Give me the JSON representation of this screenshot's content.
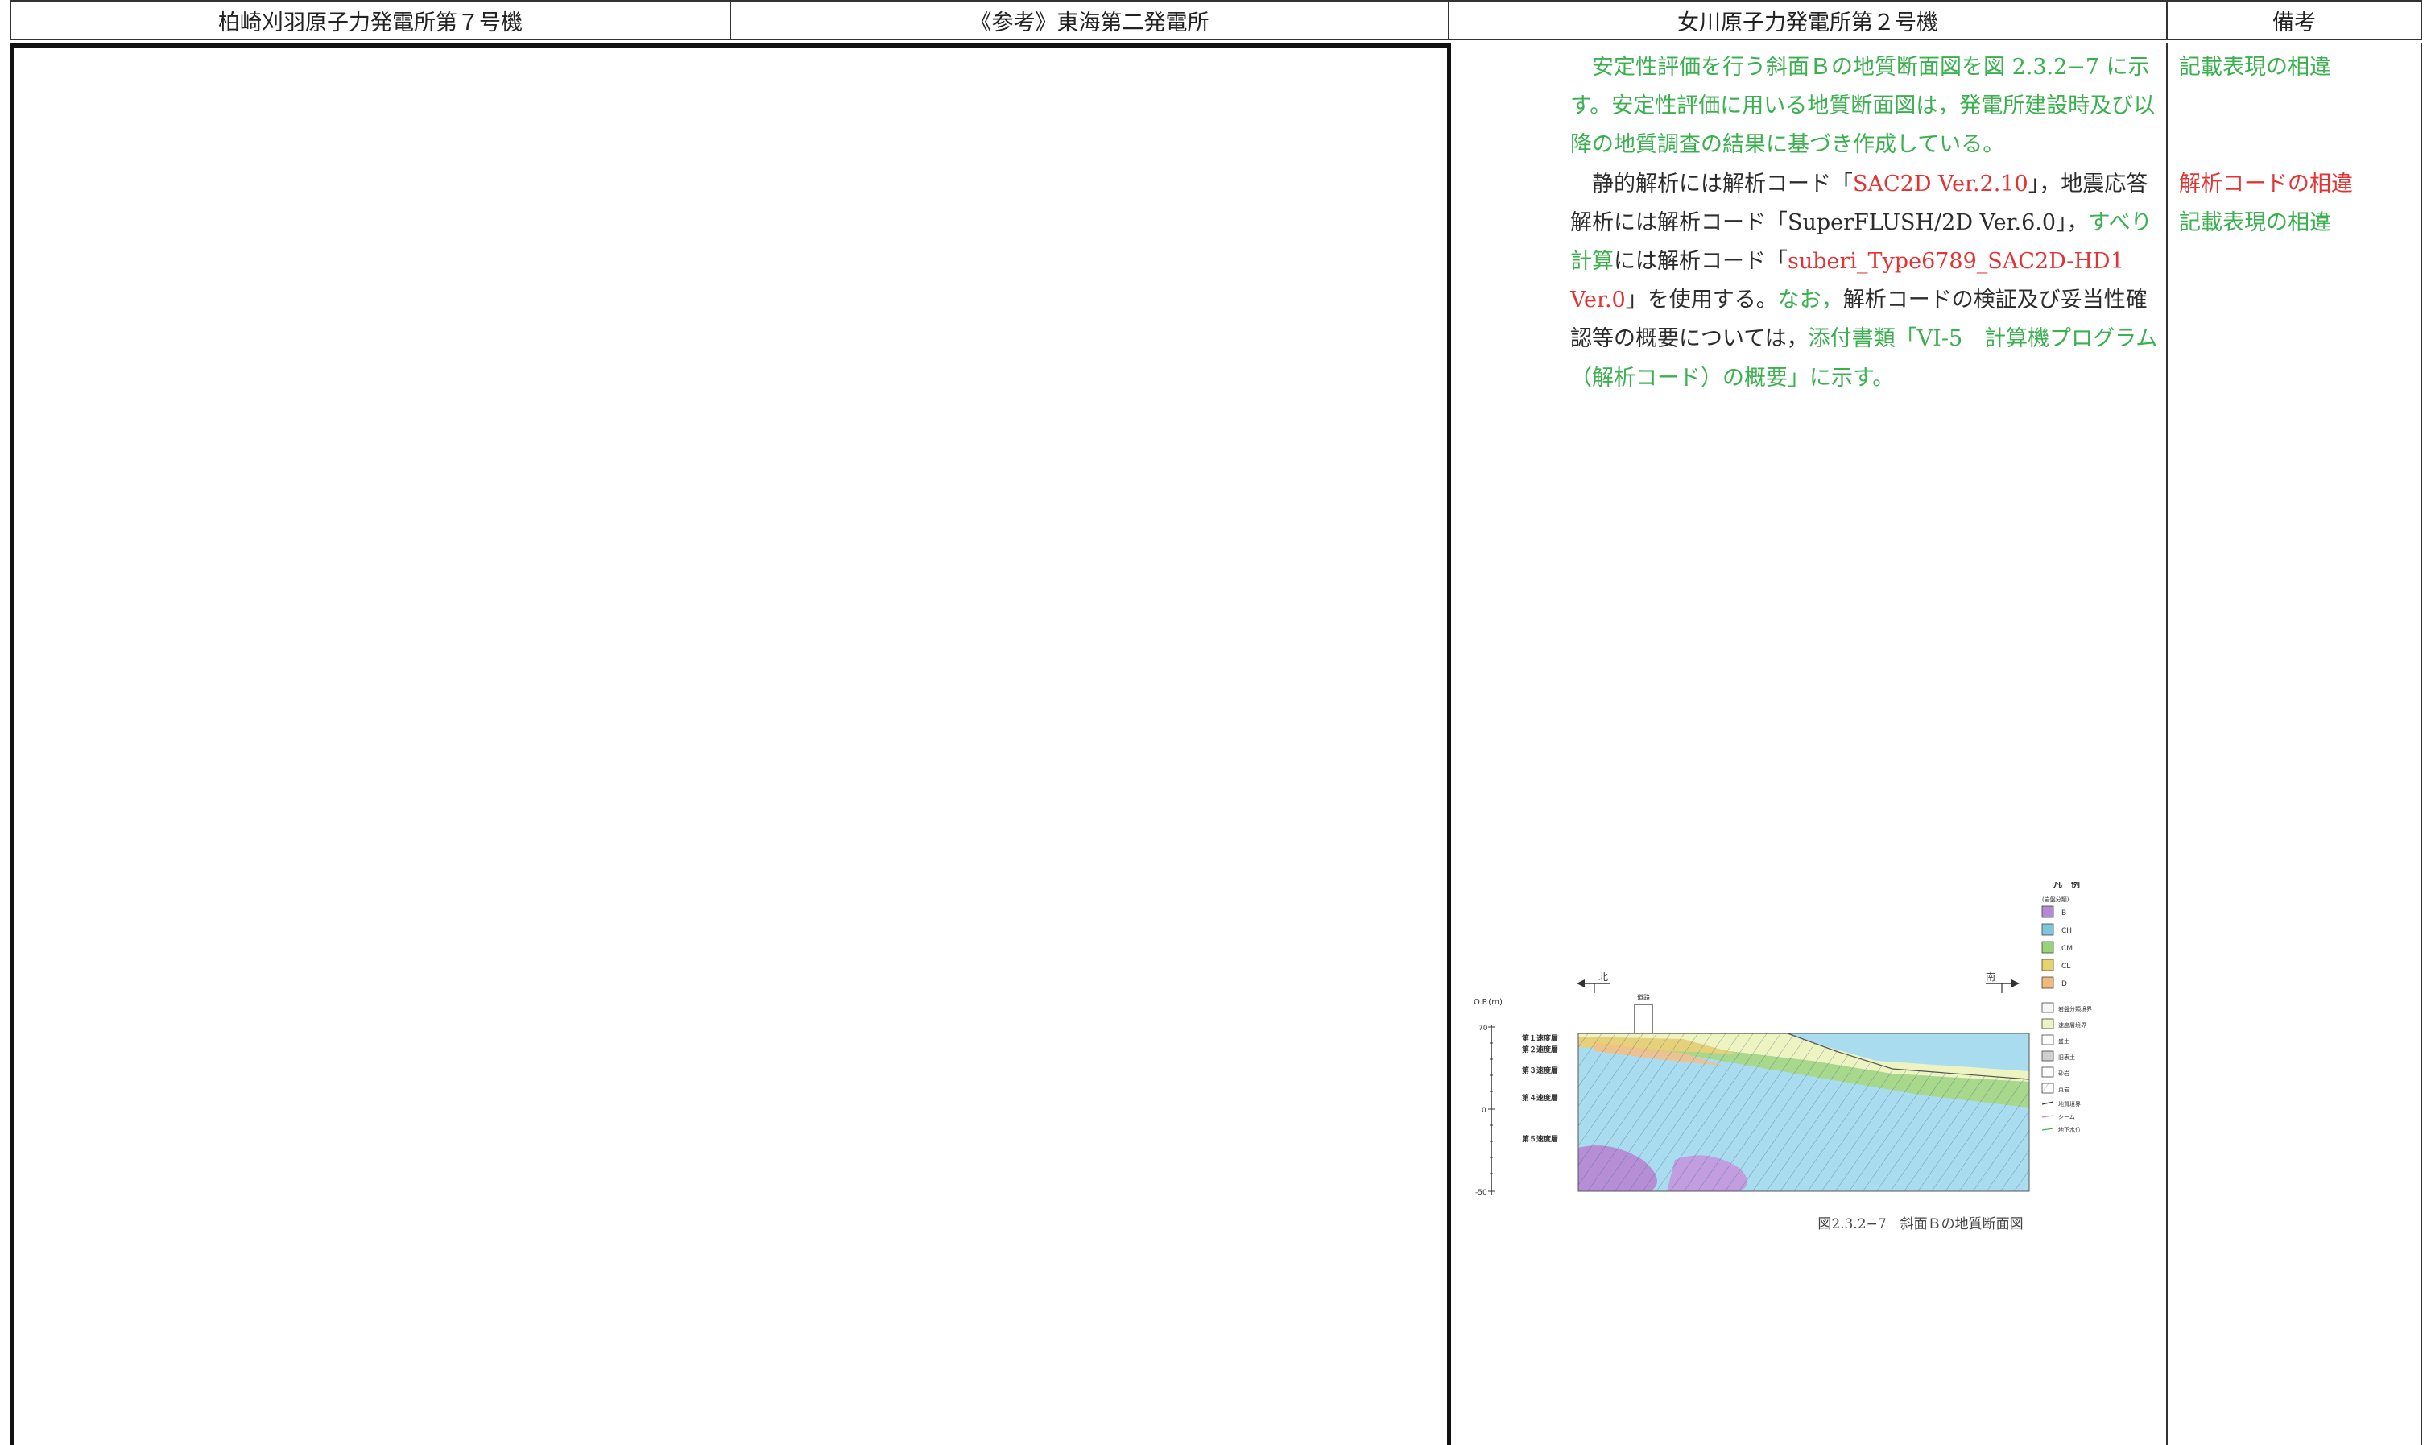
{
  "header": {
    "col1": "柏崎刈羽原子力発電所第７号機",
    "col2": "《参考》東海第二発電所",
    "col3": "女川原子力発電所第２号機",
    "col4": "備考"
  },
  "body": {
    "p1_a": "安定性評価を行う斜面Ｂの地質断面図を図 2.3.2−7 に示す。安定性評価に用いる地質断面図は，発電所建設時及び以降の地質調査の結果に基づき作成している。",
    "p2_a": "静的解析には解析コード「",
    "p2_b": "SAC2D Ver.2.10",
    "p2_c": "」，地震応答解析には解析コード「SuperFLUSH/2D Ver.6.0」，",
    "p2_d": "すべり計算",
    "p2_e": "には解析コード「",
    "p2_f": "suberi_Type6789_SAC2D-HD1 Ver.0",
    "p2_g": "」を使用する。",
    "p2_h": "なお，",
    "p2_i": "解析コードの検証及び妥当性確認等の概要については，",
    "p2_j": "添付書類「VI-5　計算機プログラム（解析コード）の概要」に示す。"
  },
  "remarks": {
    "r1": "記載表現の相違",
    "r2": "解析コードの相違",
    "r3": "記載表現の相違"
  },
  "figure": {
    "caption": "図2.3.2−7　斜面Ｂの地質断面図",
    "north": "北",
    "south": "南",
    "road": "道路",
    "y_unit": "O.P.(m)",
    "y_top": "70",
    "y_mid": "0",
    "y_bot": "-50",
    "layers": [
      "第１速度層",
      "第２速度層",
      "第３速度層",
      "第４速度層",
      "第５速度層"
    ],
    "legend_title": "凡　例",
    "legend_sub": "(岩盤分類)",
    "legend_classes": [
      "B",
      "CH",
      "CM",
      "CL",
      "D"
    ],
    "legend_items": [
      "岩盤分類境界",
      "速度層境界",
      "盛土",
      "旧表土",
      "砂岩",
      "頁岩",
      "地質境界",
      "シーム",
      "地下水位"
    ],
    "colors": {
      "B": "#b48ad3",
      "CH": "#7fc6dd",
      "CM": "#98d27a",
      "CL": "#e8d36a",
      "D": "#f1b97c"
    }
  }
}
